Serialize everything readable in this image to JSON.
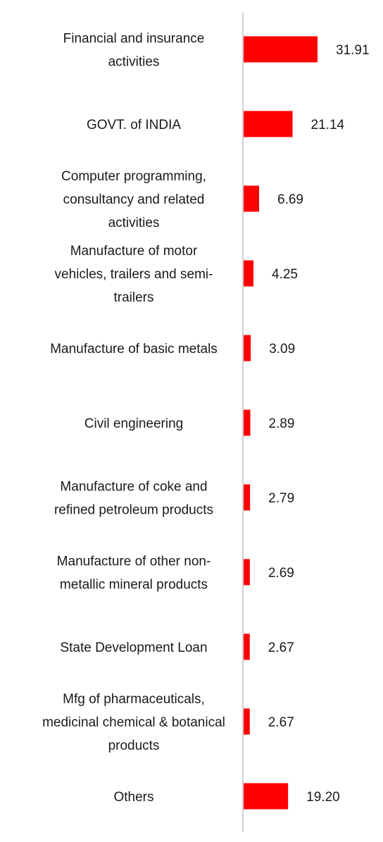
{
  "chart_data": {
    "type": "bar",
    "orientation": "horizontal",
    "categories": [
      [
        "Financial and insurance",
        "activities"
      ],
      [
        "GOVT. of INDIA"
      ],
      [
        "Computer programming,",
        "consultancy and related",
        "activities"
      ],
      [
        "Manufacture of motor",
        "vehicles, trailers and semi-",
        "trailers"
      ],
      [
        "Manufacture of basic metals"
      ],
      [
        "Civil engineering"
      ],
      [
        "Manufacture of coke and",
        "refined petroleum products"
      ],
      [
        "Manufacture of other non-",
        "metallic mineral products"
      ],
      [
        "State Development Loan"
      ],
      [
        "Mfg of pharmaceuticals,",
        "medicinal chemical & botanical",
        "products"
      ],
      [
        "Others"
      ]
    ],
    "values": [
      31.91,
      21.14,
      6.69,
      4.25,
      3.09,
      2.89,
      2.79,
      2.69,
      2.67,
      2.67,
      19.2
    ],
    "value_labels": [
      "31.91",
      "21.14",
      "6.69",
      "4.25",
      "3.09",
      "2.89",
      "2.79",
      "2.69",
      "2.67",
      "2.67",
      "19.20"
    ],
    "bar_color": "#ff0000",
    "axis_color": "#d0d0d0",
    "title": "",
    "xlabel": "",
    "ylabel": "",
    "grid": false,
    "legend": "none"
  }
}
